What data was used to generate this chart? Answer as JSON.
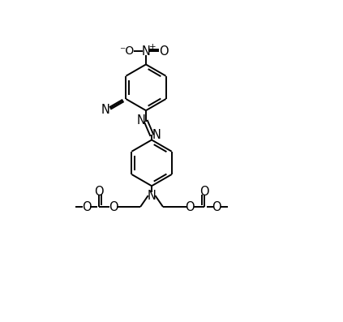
{
  "bg_color": "#ffffff",
  "line_color": "#000000",
  "line_width": 1.4,
  "font_size": 8.5,
  "fig_width": 4.23,
  "fig_height": 3.97,
  "dpi": 100,
  "xlim": [
    0,
    10
  ],
  "ylim": [
    0,
    10
  ]
}
